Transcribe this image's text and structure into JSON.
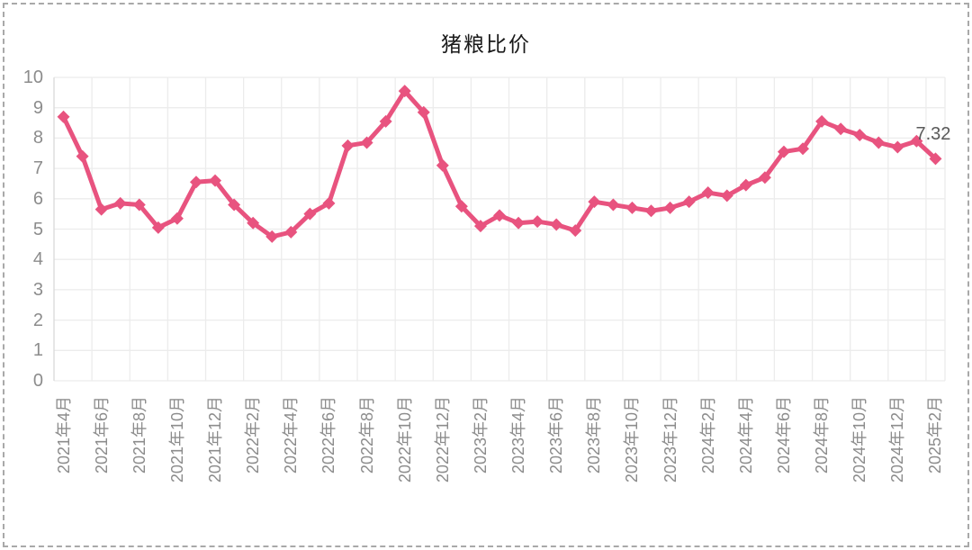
{
  "title": "猪粮比价",
  "colors": {
    "line": "#e8537f",
    "grid": "#ececec",
    "axis_line": "#d9d9d9",
    "right_border": "#ececec",
    "axis_text": "#8c8c8c",
    "title_text": "#1a1a1a",
    "data_label_text": "#595959",
    "frame_dash": "#a9a9a9",
    "background": "#ffffff"
  },
  "chart_data": {
    "type": "line",
    "title": "猪粮比价",
    "xlabel": "",
    "ylabel": "",
    "ylim": [
      0,
      10
    ],
    "y_tick_step": 1,
    "y_tick_labels": [
      "0",
      "1",
      "2",
      "3",
      "4",
      "5",
      "6",
      "7",
      "8",
      "9",
      "10"
    ],
    "grid": true,
    "legend": "none",
    "marker": "diamond",
    "line_color": "#e8537f",
    "x_tick_labels": [
      "2021年4月",
      "2021年6月",
      "2021年8月",
      "2021年10月",
      "2021年12月",
      "2022年2月",
      "2022年4月",
      "2022年6月",
      "2022年8月",
      "2022年10月",
      "2022年12月",
      "2023年2月",
      "2023年4月",
      "2023年6月",
      "2023年8月",
      "2023年10月",
      "2023年12月",
      "2024年2月",
      "2024年4月",
      "2024年6月",
      "2024年8月",
      "2024年10月",
      "2024年12月",
      "2025年2月"
    ],
    "points_per_tick": 2,
    "x_start": "2021年4月",
    "x_end": "2025年2月",
    "values": [
      8.7,
      7.4,
      5.65,
      5.85,
      5.8,
      5.05,
      5.35,
      6.55,
      6.6,
      5.8,
      5.2,
      4.75,
      4.9,
      5.5,
      5.85,
      7.75,
      7.85,
      8.55,
      9.55,
      8.85,
      7.1,
      5.75,
      5.1,
      5.45,
      5.2,
      5.25,
      5.15,
      4.95,
      5.9,
      5.8,
      5.7,
      5.6,
      5.7,
      5.9,
      6.2,
      6.1,
      6.45,
      6.7,
      7.55,
      7.65,
      8.55,
      8.3,
      8.1,
      7.85,
      7.7,
      7.9,
      7.32
    ],
    "last_point_label": "7.32"
  }
}
